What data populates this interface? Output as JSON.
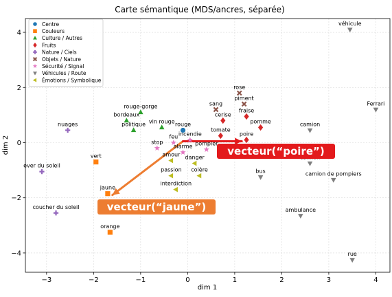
{
  "chart_data": {
    "type": "scatter",
    "title": "Carte sémantique (MDS/ancres, séparée)",
    "xlabel": "dim 1",
    "ylabel": "dim 2",
    "xlim": [
      -3.45,
      4.3
    ],
    "ylim": [
      -4.7,
      4.5
    ],
    "xticks": [
      -3,
      -2,
      -1,
      0,
      1,
      2,
      3,
      4
    ],
    "yticks": [
      -4,
      -2,
      0,
      2,
      4
    ],
    "grid": true,
    "legend_position": "top-left",
    "series": [
      {
        "name": "Centre",
        "marker": "circle",
        "color": "#1f77b4",
        "points": [
          {
            "x": -0.1,
            "y": 0.45,
            "label": "rouge"
          }
        ]
      },
      {
        "name": "Couleurs",
        "marker": "square",
        "color": "#ff7f0e",
        "points": [
          {
            "x": -1.95,
            "y": -0.7,
            "label": "vert"
          },
          {
            "x": -1.7,
            "y": -1.85,
            "label": "jaune"
          },
          {
            "x": -1.65,
            "y": -3.25,
            "label": "orange"
          }
        ]
      },
      {
        "name": "Culture / Autres",
        "marker": "triangle-up",
        "color": "#2ca02c",
        "points": [
          {
            "x": -1.0,
            "y": 1.1,
            "label": "rouge-gorge"
          },
          {
            "x": -1.3,
            "y": 0.8,
            "label": "bordeaux"
          },
          {
            "x": -1.15,
            "y": 0.45,
            "label": "politique"
          },
          {
            "x": -0.55,
            "y": 0.55,
            "label": "vin rouge"
          }
        ]
      },
      {
        "name": "Fruits",
        "marker": "diamond",
        "color": "#d62728",
        "points": [
          {
            "x": 0.75,
            "y": 0.8,
            "label": "cerise"
          },
          {
            "x": 1.25,
            "y": 0.95,
            "label": "fraise"
          },
          {
            "x": 0.7,
            "y": 0.25,
            "label": "tomate"
          },
          {
            "x": 1.25,
            "y": 0.1,
            "label": "poire"
          },
          {
            "x": 1.55,
            "y": 0.55,
            "label": "pomme"
          }
        ]
      },
      {
        "name": "Nature / Ciels",
        "marker": "plus",
        "color": "#9467bd",
        "points": [
          {
            "x": -2.55,
            "y": 0.45,
            "label": "nuages"
          },
          {
            "x": -3.1,
            "y": -1.05,
            "label": "ever du soleil"
          },
          {
            "x": -2.8,
            "y": -2.55,
            "label": "coucher du soleil"
          }
        ]
      },
      {
        "name": "Objets / Nature",
        "marker": "x",
        "color": "#8c564b",
        "points": [
          {
            "x": 1.1,
            "y": 1.8,
            "label": "rose"
          },
          {
            "x": 0.6,
            "y": 1.2,
            "label": "sang"
          },
          {
            "x": 1.2,
            "y": 1.4,
            "label": "piment"
          }
        ]
      },
      {
        "name": "Sécurité / Signal",
        "marker": "star",
        "color": "#e377c2",
        "points": [
          {
            "x": -0.65,
            "y": -0.2,
            "label": "stop"
          },
          {
            "x": -0.3,
            "y": 0.0,
            "label": "feu"
          },
          {
            "x": 0.05,
            "y": 0.1,
            "label": "incendie"
          },
          {
            "x": -0.1,
            "y": -0.35,
            "label": "alarme"
          },
          {
            "x": 0.4,
            "y": -0.25,
            "label": "pompier"
          }
        ]
      },
      {
        "name": "Véhicules / Route",
        "marker": "triangle-down",
        "color": "#7f7f7f",
        "points": [
          {
            "x": 3.45,
            "y": 4.1,
            "label": "véhicule"
          },
          {
            "x": 4.0,
            "y": 1.2,
            "label": "Ferrari"
          },
          {
            "x": 2.6,
            "y": 0.45,
            "label": "camion"
          },
          {
            "x": 2.6,
            "y": -0.75,
            "label": "camion"
          },
          {
            "x": 1.55,
            "y": -1.25,
            "label": "bus"
          },
          {
            "x": 3.1,
            "y": -1.35,
            "label": "camion de pompiers"
          },
          {
            "x": 2.4,
            "y": -2.65,
            "label": "ambulance"
          },
          {
            "x": 3.5,
            "y": -4.25,
            "label": "rue"
          }
        ]
      },
      {
        "name": "Émotions / Symbolique",
        "marker": "triangle-left",
        "color": "#bcbd22",
        "points": [
          {
            "x": -0.35,
            "y": -0.65,
            "label": "amour"
          },
          {
            "x": 0.15,
            "y": -0.75,
            "label": "danger"
          },
          {
            "x": -0.35,
            "y": -1.2,
            "label": "passion"
          },
          {
            "x": 0.25,
            "y": -1.2,
            "label": "colère"
          },
          {
            "x": -0.25,
            "y": -1.7,
            "label": "interdiction"
          }
        ]
      }
    ],
    "arrows": [
      {
        "from": [
          -0.1,
          0.05
        ],
        "to": [
          -1.6,
          -1.9
        ],
        "color": "#ed7d31",
        "label": "vecteur(“jaune”)"
      },
      {
        "from": [
          -0.1,
          0.05
        ],
        "to": [
          1.15,
          0.05
        ],
        "color": "#e31a1c",
        "label": "vecteur(“poire”)"
      }
    ]
  }
}
